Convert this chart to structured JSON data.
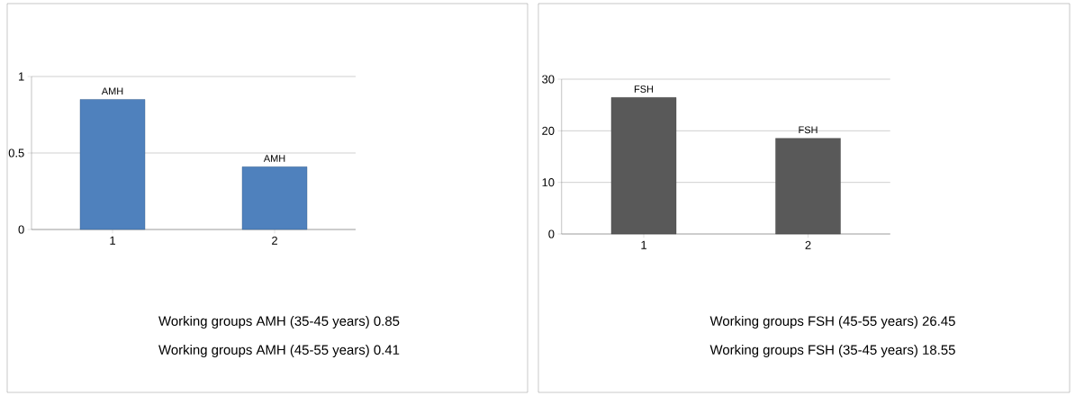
{
  "chart_data": [
    {
      "type": "bar",
      "categories": [
        "1",
        "2"
      ],
      "series": [
        {
          "name": "AMH",
          "color": "#4f81bd",
          "values": [
            0.85,
            0.41
          ]
        }
      ],
      "ylim": [
        0,
        1
      ],
      "yticks": [
        0,
        0.5,
        1
      ],
      "grid": "y",
      "annotations": [
        "Working groups  AMH (35-45 years) 0.85",
        "Working groups  AMH (45-55 years) 0.41"
      ]
    },
    {
      "type": "bar",
      "categories": [
        "1",
        "2"
      ],
      "series": [
        {
          "name": "FSH",
          "color": "#595959",
          "values": [
            26.45,
            18.55
          ]
        }
      ],
      "ylim": [
        0,
        30
      ],
      "yticks": [
        0,
        10,
        20,
        30
      ],
      "grid": "y",
      "annotations": [
        "Working groups  FSH (45-55 years) 26.45",
        "Working groups  FSH (35-45 years) 18.55"
      ]
    }
  ]
}
